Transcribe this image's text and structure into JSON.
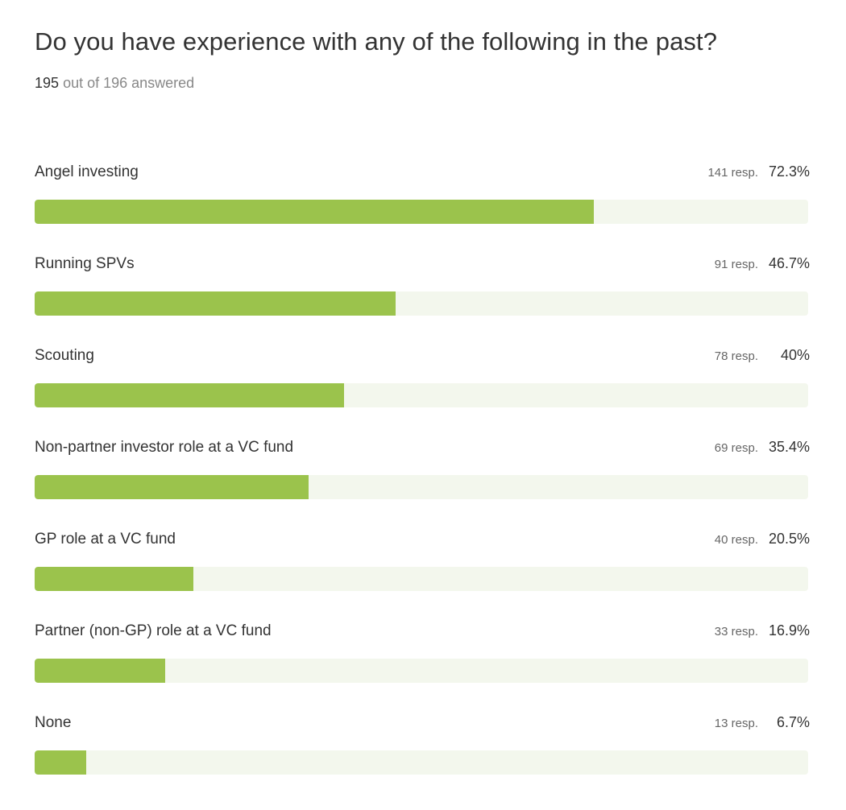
{
  "question": {
    "title": "Do you have experience with any of the following in the past?",
    "answered_count": "195",
    "answered_suffix": "out of 196 answered"
  },
  "colors": {
    "bar_fill": "#9bc34c",
    "bar_track": "#f3f7ed"
  },
  "chart_data": {
    "type": "bar",
    "orientation": "horizontal",
    "title": "Do you have experience with any of the following in the past?",
    "categories": [
      "Angel investing",
      "Running SPVs",
      "Scouting",
      "Non-partner investor role at a VC fund",
      "GP role at a VC fund",
      "Partner (non-GP) role at a VC fund",
      "None"
    ],
    "responses": [
      141,
      91,
      78,
      69,
      40,
      33,
      13
    ],
    "values": [
      72.3,
      46.7,
      40,
      35.4,
      20.5,
      16.9,
      6.7
    ],
    "response_labels": [
      "141 resp.",
      "91 resp.",
      "78 resp.",
      "69 resp.",
      "40 resp.",
      "33 resp.",
      "13 resp."
    ],
    "percent_labels": [
      "72.3%",
      "46.7%",
      "40%",
      "35.4%",
      "20.5%",
      "16.9%",
      "6.7%"
    ],
    "xlim": [
      0,
      100
    ],
    "grid": false
  }
}
